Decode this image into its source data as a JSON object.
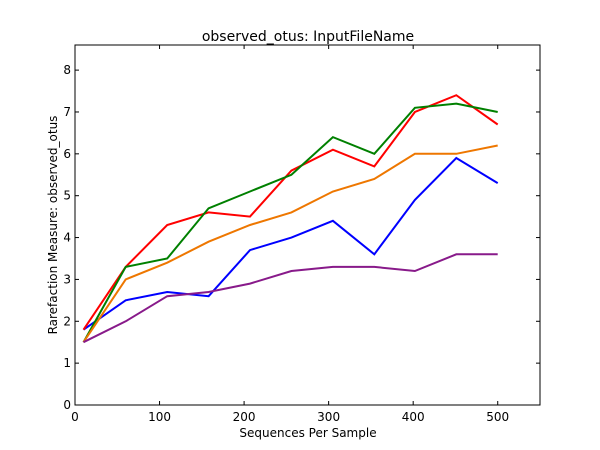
{
  "chart_data": {
    "type": "line",
    "title": "observed_otus: InputFileName",
    "xlabel": "Sequences Per Sample",
    "ylabel": "Rarefaction Measure: observed_otus",
    "xlim": [
      0,
      550
    ],
    "ylim": [
      0,
      8.6
    ],
    "xticks": [
      0,
      100,
      200,
      300,
      400,
      500
    ],
    "yticks": [
      0,
      1,
      2,
      3,
      4,
      5,
      6,
      7,
      8
    ],
    "grid": false,
    "legend": false,
    "x": [
      10,
      60,
      109,
      158,
      207,
      256,
      305,
      354,
      402,
      451,
      500
    ],
    "series": [
      {
        "color": "#0000ff",
        "values": [
          1.8,
          2.5,
          2.7,
          2.6,
          3.7,
          4.0,
          4.4,
          3.6,
          4.9,
          5.9,
          5.3
        ]
      },
      {
        "color": "#ff0000",
        "values": [
          1.8,
          3.3,
          4.3,
          4.6,
          4.5,
          5.6,
          6.1,
          5.7,
          7.0,
          7.4,
          6.7
        ]
      },
      {
        "color": "#008000",
        "values": [
          1.5,
          3.3,
          3.5,
          4.7,
          5.1,
          5.5,
          6.4,
          6.0,
          7.1,
          7.2,
          7.0
        ]
      },
      {
        "color": "#ee7700",
        "values": [
          1.5,
          3.0,
          3.4,
          3.9,
          4.3,
          4.6,
          5.1,
          5.4,
          6.0,
          6.0,
          6.2
        ]
      },
      {
        "color": "#881a8a",
        "values": [
          1.5,
          2.0,
          2.6,
          2.7,
          2.9,
          3.2,
          3.3,
          3.3,
          3.2,
          3.6,
          3.6
        ]
      }
    ]
  }
}
